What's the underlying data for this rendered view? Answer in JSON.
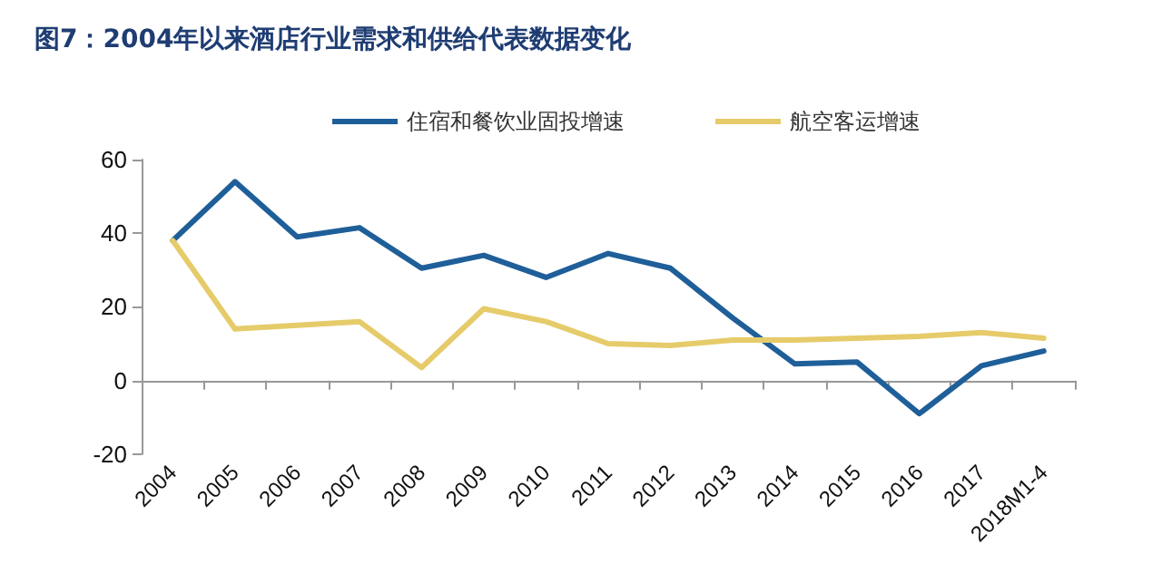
{
  "chart_data": {
    "type": "line",
    "title": "图7：2004年以来酒店行业需求和供给代表数据变化",
    "categories": [
      "2004",
      "2005",
      "2006",
      "2007",
      "2008",
      "2009",
      "2010",
      "2011",
      "2012",
      "2013",
      "2014",
      "2015",
      "2016",
      "2017",
      "2018M1-4"
    ],
    "series": [
      {
        "name": "住宿和餐饮业固投增速",
        "color": "#1f5f99",
        "values": [
          38,
          54,
          39,
          41.5,
          30.5,
          34,
          28,
          34.5,
          30.5,
          17,
          4.5,
          5,
          -9,
          4,
          8
        ]
      },
      {
        "name": "航空客运增速",
        "color": "#e6cb6a",
        "values": [
          38,
          14,
          15,
          16,
          3.5,
          19.5,
          16,
          10,
          9.5,
          11,
          11,
          11.5,
          12,
          13,
          11.5
        ]
      }
    ],
    "ylim": [
      -20,
      60
    ],
    "yticks": [
      -20,
      0,
      20,
      40,
      60
    ],
    "legend": "top",
    "marker": "none",
    "line_style": "solid"
  }
}
